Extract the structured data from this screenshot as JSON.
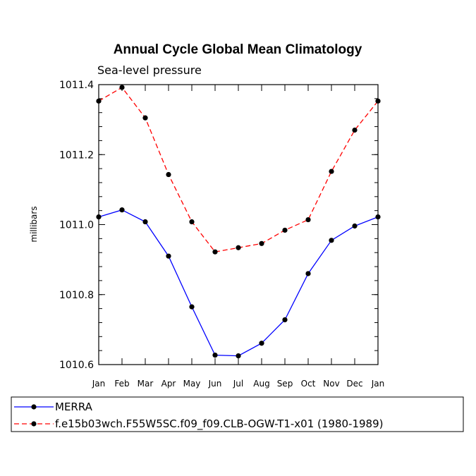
{
  "chart_data": {
    "type": "line",
    "title": "Annual Cycle Global Mean Climatology",
    "subtitle": "Sea-level pressure",
    "xlabel": "",
    "ylabel": "millibars",
    "ylim": [
      1010.6,
      1011.4
    ],
    "yticks": [
      "1010.6",
      "1010.8",
      "1011.0",
      "1011.2",
      "1011.4"
    ],
    "categories": [
      "Jan",
      "Feb",
      "Mar",
      "Apr",
      "May",
      "Jun",
      "Jul",
      "Aug",
      "Sep",
      "Oct",
      "Nov",
      "Dec",
      "Jan"
    ],
    "series": [
      {
        "name": "MERRA",
        "color": "#0000ff",
        "dash": "solid",
        "values": [
          1011.022,
          1011.042,
          1011.008,
          1010.91,
          1010.765,
          1010.627,
          1010.625,
          1010.661,
          1010.728,
          1010.86,
          1010.955,
          1010.996,
          1011.022
        ]
      },
      {
        "name": "f.e15b03wch.F55W5SC.f09_f09.CLB-OGW-T1-x01 (1980-1989)",
        "color": "#ff0000",
        "dash": "dashed",
        "values": [
          1011.353,
          1011.392,
          1011.305,
          1011.143,
          1011.008,
          1010.922,
          1010.934,
          1010.946,
          1010.984,
          1011.014,
          1011.152,
          1011.27,
          1011.353
        ]
      }
    ]
  }
}
